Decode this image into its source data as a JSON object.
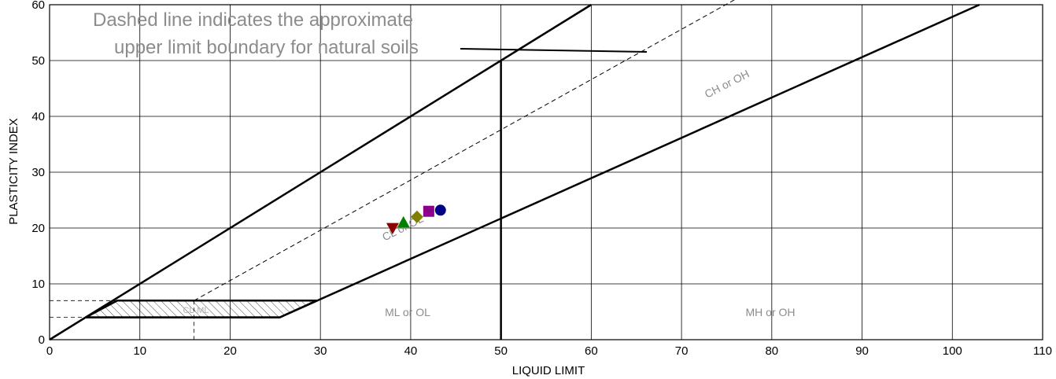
{
  "chart_data": {
    "type": "scatter",
    "title": "",
    "xlabel": "LIQUID LIMIT",
    "ylabel": "PLASTICITY INDEX",
    "xlim": [
      0,
      110
    ],
    "ylim": [
      0,
      60
    ],
    "x_ticks": [
      0,
      10,
      20,
      30,
      40,
      50,
      60,
      70,
      80,
      90,
      100,
      110
    ],
    "y_ticks": [
      0,
      10,
      20,
      30,
      40,
      50,
      60
    ],
    "grid": true,
    "annotation": {
      "line1": "Dashed line indicates the approximate",
      "line2": "upper limit boundary for natural soils"
    },
    "zone_labels": {
      "ch_oh": "CH or OH",
      "cl_ol": "CL or OL",
      "ml_ol": "ML or OL",
      "mh_oh": "MH or OH",
      "cl_ml": "CL-ML"
    },
    "boundaries": {
      "a_line": [
        [
          4,
          4
        ],
        [
          25.5,
          4
        ],
        [
          103,
          60
        ]
      ],
      "u_line": [
        [
          0,
          0
        ],
        [
          60,
          60
        ]
      ],
      "u_line_dashed": [
        [
          16,
          7
        ],
        [
          76,
          61
        ]
      ],
      "ll50": [
        [
          50,
          0
        ],
        [
          50,
          50
        ]
      ],
      "pi7": [
        [
          7.5,
          7
        ],
        [
          29.6,
          7
        ]
      ]
    },
    "points": [
      {
        "x": 38,
        "y": 20,
        "marker": "triangle-down",
        "color": "#8b0000"
      },
      {
        "x": 39.2,
        "y": 21,
        "marker": "triangle-up",
        "color": "#008000"
      },
      {
        "x": 40.7,
        "y": 22,
        "marker": "diamond",
        "color": "#808000"
      },
      {
        "x": 42,
        "y": 23,
        "marker": "square",
        "color": "#8b008b"
      },
      {
        "x": 43.3,
        "y": 23.2,
        "marker": "circle",
        "color": "#00008b"
      }
    ]
  }
}
